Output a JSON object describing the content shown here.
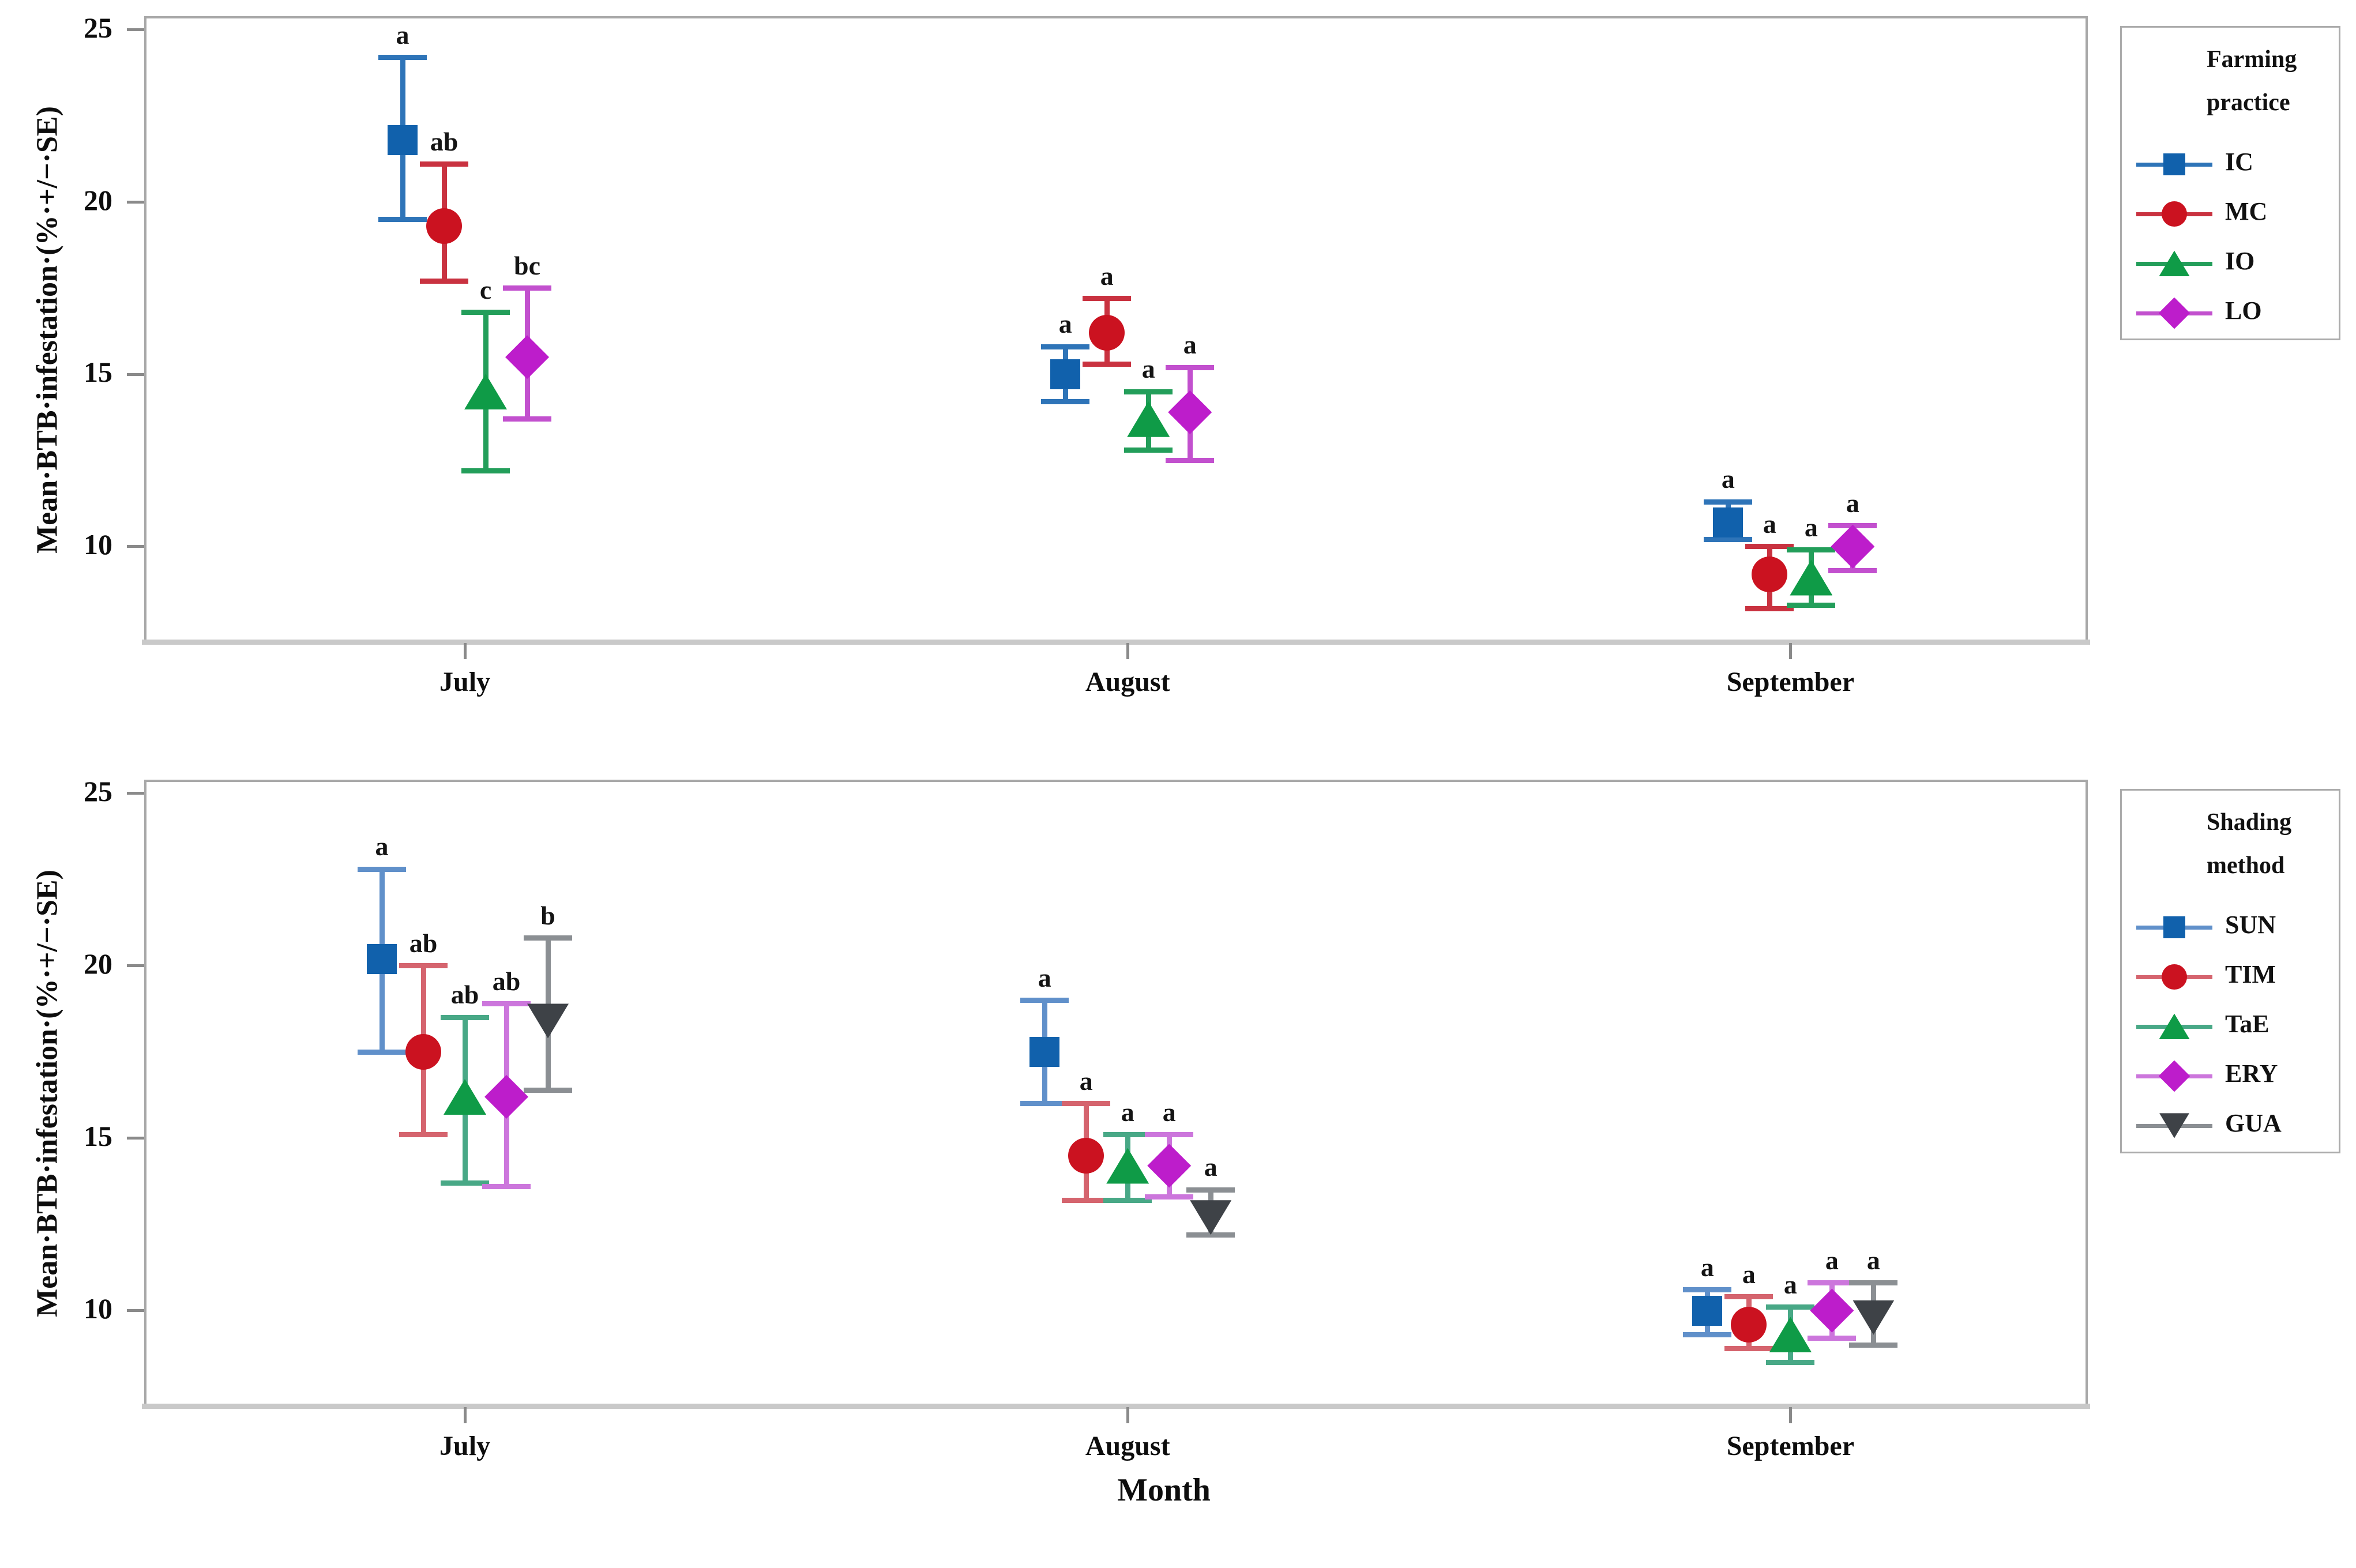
{
  "figure": {
    "xlabel": "Month",
    "background": "#ffffff"
  },
  "chart_data": [
    {
      "type": "errorbar",
      "panel": "farming-practice",
      "title": "",
      "ylabel": "Mean·BTB·infestation·(%·+/−·SE)",
      "xlabel": "",
      "ylim": [
        7.2,
        25.4
      ],
      "yticks": [
        25,
        20,
        15,
        10
      ],
      "categories": [
        "July",
        "August",
        "September"
      ],
      "grid": false,
      "legend_position": "outside-top-right",
      "legend_title_lines": [
        "Farming",
        "practice"
      ],
      "series": [
        {
          "name": "IC",
          "marker": "square",
          "color": "#1161AC",
          "bar_color": "#2E74B8",
          "points": [
            {
              "category": "July",
              "mean": 21.8,
              "lo": 19.5,
              "hi": 24.2,
              "sig": "a"
            },
            {
              "category": "August",
              "mean": 15.0,
              "lo": 14.2,
              "hi": 15.8,
              "sig": "a"
            },
            {
              "category": "September",
              "mean": 10.7,
              "lo": 10.2,
              "hi": 11.3,
              "sig": "a"
            }
          ]
        },
        {
          "name": "MC",
          "marker": "circle",
          "color": "#CB1220",
          "bar_color": "#C93240",
          "points": [
            {
              "category": "July",
              "mean": 19.3,
              "lo": 17.7,
              "hi": 21.1,
              "sig": "ab"
            },
            {
              "category": "August",
              "mean": 16.2,
              "lo": 15.3,
              "hi": 17.2,
              "sig": "a"
            },
            {
              "category": "September",
              "mean": 9.2,
              "lo": 8.2,
              "hi": 10.0,
              "sig": "a"
            }
          ]
        },
        {
          "name": "IO",
          "marker": "triangle-up",
          "color": "#0F9B47",
          "bar_color": "#239E5A",
          "points": [
            {
              "category": "July",
              "mean": 14.5,
              "lo": 12.2,
              "hi": 16.8,
              "sig": "c"
            },
            {
              "category": "August",
              "mean": 13.7,
              "lo": 12.8,
              "hi": 14.5,
              "sig": "a"
            },
            {
              "category": "September",
              "mean": 9.1,
              "lo": 8.3,
              "hi": 9.9,
              "sig": "a"
            }
          ]
        },
        {
          "name": "LO",
          "marker": "diamond",
          "color": "#BD1DCB",
          "bar_color": "#C250CE",
          "points": [
            {
              "category": "July",
              "mean": 15.5,
              "lo": 13.7,
              "hi": 17.5,
              "sig": "bc"
            },
            {
              "category": "August",
              "mean": 13.9,
              "lo": 12.5,
              "hi": 15.2,
              "sig": "a"
            },
            {
              "category": "September",
              "mean": 10.0,
              "lo": 9.3,
              "hi": 10.6,
              "sig": "a"
            }
          ]
        }
      ]
    },
    {
      "type": "errorbar",
      "panel": "shading-method",
      "title": "",
      "ylabel": "Mean·BTB·infestation·(%·+/−·SE)",
      "xlabel": "Month",
      "ylim": [
        7.2,
        25.4
      ],
      "yticks": [
        25,
        20,
        15,
        10
      ],
      "categories": [
        "July",
        "August",
        "September"
      ],
      "grid": false,
      "legend_position": "outside-top-right",
      "legend_title_lines": [
        "Shading",
        "method"
      ],
      "series": [
        {
          "name": "SUN",
          "marker": "square",
          "color": "#1161AC",
          "bar_color": "#6090CA",
          "points": [
            {
              "category": "July",
              "mean": 20.2,
              "lo": 17.5,
              "hi": 22.8,
              "sig": "a"
            },
            {
              "category": "August",
              "mean": 17.5,
              "lo": 16.0,
              "hi": 19.0,
              "sig": "a"
            },
            {
              "category": "September",
              "mean": 10.0,
              "lo": 9.3,
              "hi": 10.6,
              "sig": "a"
            }
          ]
        },
        {
          "name": "TIM",
          "marker": "circle",
          "color": "#CB1220",
          "bar_color": "#D5646E",
          "points": [
            {
              "category": "July",
              "mean": 17.5,
              "lo": 15.1,
              "hi": 20.0,
              "sig": "ab"
            },
            {
              "category": "August",
              "mean": 14.5,
              "lo": 13.2,
              "hi": 16.0,
              "sig": "a"
            },
            {
              "category": "September",
              "mean": 9.6,
              "lo": 8.9,
              "hi": 10.4,
              "sig": "a"
            }
          ]
        },
        {
          "name": "TaE",
          "marker": "triangle-up",
          "color": "#0F9B47",
          "bar_color": "#48A886",
          "points": [
            {
              "category": "July",
              "mean": 16.2,
              "lo": 13.7,
              "hi": 18.5,
              "sig": "ab"
            },
            {
              "category": "August",
              "mean": 14.2,
              "lo": 13.2,
              "hi": 15.1,
              "sig": "a"
            },
            {
              "category": "September",
              "mean": 9.3,
              "lo": 8.5,
              "hi": 10.1,
              "sig": "a"
            }
          ]
        },
        {
          "name": "ERY",
          "marker": "diamond",
          "color": "#BD1DCB",
          "bar_color": "#CC76DC",
          "points": [
            {
              "category": "July",
              "mean": 16.2,
              "lo": 13.6,
              "hi": 18.9,
              "sig": "ab"
            },
            {
              "category": "August",
              "mean": 14.2,
              "lo": 13.3,
              "hi": 15.1,
              "sig": "a"
            },
            {
              "category": "September",
              "mean": 10.0,
              "lo": 9.2,
              "hi": 10.8,
              "sig": "a"
            }
          ]
        },
        {
          "name": "GUA",
          "marker": "triangle-down",
          "color": "#3E4247",
          "bar_color": "#8B8F93",
          "points": [
            {
              "category": "July",
              "mean": 18.4,
              "lo": 16.4,
              "hi": 20.8,
              "sig": "b"
            },
            {
              "category": "August",
              "mean": 12.7,
              "lo": 12.2,
              "hi": 13.5,
              "sig": "a"
            },
            {
              "category": "September",
              "mean": 9.8,
              "lo": 9.0,
              "hi": 10.8,
              "sig": "a"
            }
          ]
        }
      ]
    }
  ]
}
